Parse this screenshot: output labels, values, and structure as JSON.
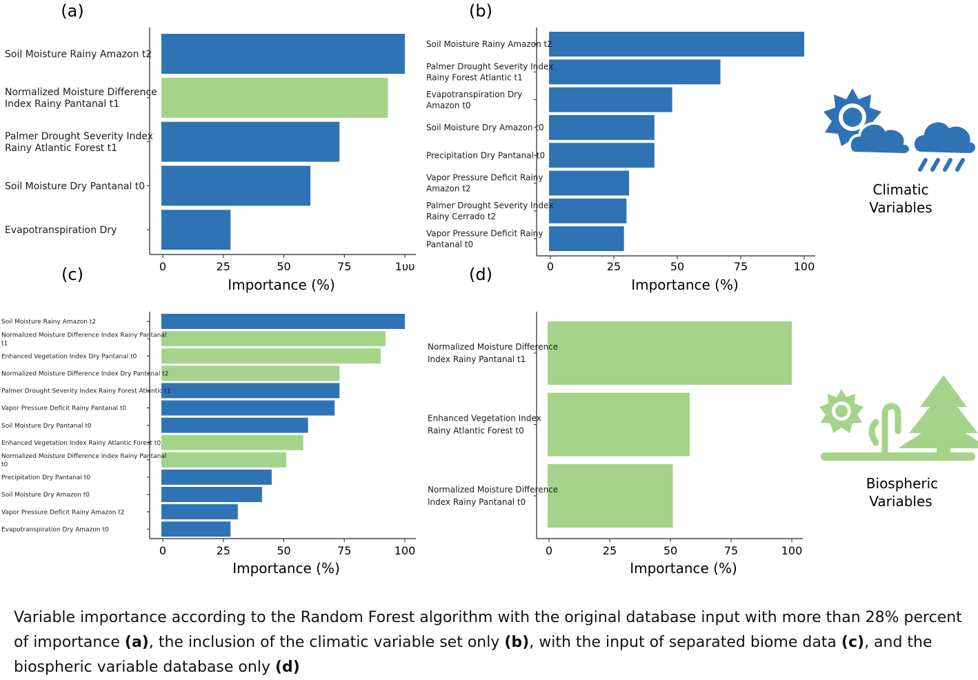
{
  "colors": {
    "climatic": "#2f73b5",
    "biospheric": "#a5d38a",
    "axis": "#222222"
  },
  "icons": {
    "climatic": {
      "names": [
        "sun-cloud-icon",
        "rain-cloud-icon"
      ],
      "label_lines": [
        "Climatic",
        "Variables"
      ]
    },
    "biospheric": {
      "names": [
        "sun-icon",
        "seedling-icon",
        "pine-tree-icon"
      ],
      "label_lines": [
        "Biospheric",
        "Variables"
      ]
    }
  },
  "chart_data": [
    {
      "id": "a",
      "panel_label": "(a)",
      "type": "bar",
      "orientation": "horizontal",
      "xlabel": "Importance (%)",
      "xlim": [
        0,
        100
      ],
      "xticks": [
        0,
        25,
        50,
        75,
        100
      ],
      "xticklabels": [
        "0",
        "25",
        "50",
        "75",
        "1υυ"
      ],
      "bars": [
        {
          "label_lines": [
            "Soil Moisture Rainy Amazon t2"
          ],
          "value": 100,
          "group": "climatic"
        },
        {
          "label_lines": [
            "Normalized Moisture Difference",
            "Index Rainy Pantanal t1"
          ],
          "value": 93,
          "group": "biospheric"
        },
        {
          "label_lines": [
            "Palmer Drought Severity Index",
            "Rainy Atlantic Forest t1"
          ],
          "value": 73,
          "group": "climatic"
        },
        {
          "label_lines": [
            "Soil Moisture Dry Pantanal t0"
          ],
          "value": 61,
          "group": "climatic"
        },
        {
          "label_lines": [
            "Evapotranspiration Dry"
          ],
          "value": 28,
          "group": "climatic"
        }
      ]
    },
    {
      "id": "b",
      "panel_label": "(b)",
      "type": "bar",
      "orientation": "horizontal",
      "xlabel": "Importance (%)",
      "xlim": [
        0,
        100
      ],
      "xticks": [
        0,
        25,
        50,
        75,
        100
      ],
      "xticklabels": [
        "0",
        "25",
        "50",
        "75",
        "100"
      ],
      "bars": [
        {
          "label_lines": [
            "Soil Moisture Rainy Amazon t2"
          ],
          "value": 100,
          "group": "climatic"
        },
        {
          "label_lines": [
            "Palmer Drought Severity Index",
            "Rainy Forest Atlantic t1"
          ],
          "value": 67,
          "group": "climatic"
        },
        {
          "label_lines": [
            "Evapotranspiration Dry",
            "Amazon t0"
          ],
          "value": 48,
          "group": "climatic"
        },
        {
          "label_lines": [
            "Soil Moisture Dry Amazon t0"
          ],
          "value": 41,
          "group": "climatic"
        },
        {
          "label_lines": [
            "Precipitation Dry Pantanal t0"
          ],
          "value": 41,
          "group": "climatic"
        },
        {
          "label_lines": [
            "Vapor Pressure Deficit Rainy",
            "Amazon t2"
          ],
          "value": 31,
          "group": "climatic"
        },
        {
          "label_lines": [
            "Palmer Drought Severity Index",
            "Rainy Cerrado t2"
          ],
          "value": 30,
          "group": "climatic"
        },
        {
          "label_lines": [
            "Vapor Pressure Deficit Rainy",
            "Pantanal t0"
          ],
          "value": 29,
          "group": "climatic"
        }
      ]
    },
    {
      "id": "c",
      "panel_label": "(c)",
      "type": "bar",
      "orientation": "horizontal",
      "xlabel": "Importance (%)",
      "xlim": [
        0,
        100
      ],
      "xticks": [
        0,
        25,
        50,
        75,
        100
      ],
      "xticklabels": [
        "0",
        "25",
        "50",
        "75",
        "100"
      ],
      "bars": [
        {
          "label_lines": [
            "Soil Moisture Rainy Amazon t2"
          ],
          "value": 100,
          "group": "climatic"
        },
        {
          "label_lines": [
            "Normalized Moisture Difference Index Rainy Pantanal",
            "t1"
          ],
          "value": 92,
          "group": "biospheric"
        },
        {
          "label_lines": [
            "Enhanced Vegetation Index Dry Pantanal t0"
          ],
          "value": 90,
          "group": "biospheric"
        },
        {
          "label_lines": [
            "Normalized Moisture Difference Index Dry Pantanal t2"
          ],
          "value": 73,
          "group": "biospheric"
        },
        {
          "label_lines": [
            "Palmer Drought Severity Index Rainy Forest Atlantic t1"
          ],
          "value": 73,
          "group": "climatic"
        },
        {
          "label_lines": [
            "Vapor Pressure Deficit Rainy Pantanal t0"
          ],
          "value": 71,
          "group": "climatic"
        },
        {
          "label_lines": [
            "Soil Moisture Dry Pantanal t0"
          ],
          "value": 60,
          "group": "climatic"
        },
        {
          "label_lines": [
            "Enhanced Vegetation Index Rainy Atlantic Forest t0"
          ],
          "value": 58,
          "group": "biospheric"
        },
        {
          "label_lines": [
            "Normalized Moisture Difference Index Rainy Pantanal",
            "t0"
          ],
          "value": 51,
          "group": "biospheric"
        },
        {
          "label_lines": [
            "Precipitation Dry Pantanal t0"
          ],
          "value": 45,
          "group": "climatic"
        },
        {
          "label_lines": [
            "Soil Moisture Dry Amazon t0"
          ],
          "value": 41,
          "group": "climatic"
        },
        {
          "label_lines": [
            "Vapor Pressure Deficit Rainy Amazon t2"
          ],
          "value": 31,
          "group": "climatic"
        },
        {
          "label_lines": [
            "Evapotranspiration Dry Amazon t0"
          ],
          "value": 28,
          "group": "climatic"
        }
      ]
    },
    {
      "id": "d",
      "panel_label": "(d)",
      "type": "bar",
      "orientation": "horizontal",
      "xlabel": "Importance (%)",
      "xlim": [
        0,
        100
      ],
      "xticks": [
        0,
        25,
        50,
        75,
        100
      ],
      "xticklabels": [
        "0",
        "25",
        "50",
        "75",
        "100"
      ],
      "bars": [
        {
          "label_lines": [
            "Normalized Moisture Difference",
            "Index Rainy Pantanal t1"
          ],
          "value": 100,
          "group": "biospheric"
        },
        {
          "label_lines": [
            "Enhanced Vegetation Index",
            "Rainy Atlantic Forest t0"
          ],
          "value": 58,
          "group": "biospheric"
        },
        {
          "label_lines": [
            "Normalized Moisture Difference",
            "Index Rainy Pantanal t0"
          ],
          "value": 51,
          "group": "biospheric"
        }
      ]
    }
  ],
  "caption": {
    "segments": [
      {
        "text": "Variable importance according to the Random Forest algorithm with the original database input with more than 28% percent of importance ",
        "bold": false
      },
      {
        "text": "(a)",
        "bold": true
      },
      {
        "text": ", the inclusion of the climatic variable set only ",
        "bold": false
      },
      {
        "text": "(b)",
        "bold": true
      },
      {
        "text": ", with the input of separated biome data ",
        "bold": false
      },
      {
        "text": "(c)",
        "bold": true
      },
      {
        "text": ", and the biospheric variable database only ",
        "bold": false
      },
      {
        "text": "(d)",
        "bold": true
      }
    ]
  }
}
